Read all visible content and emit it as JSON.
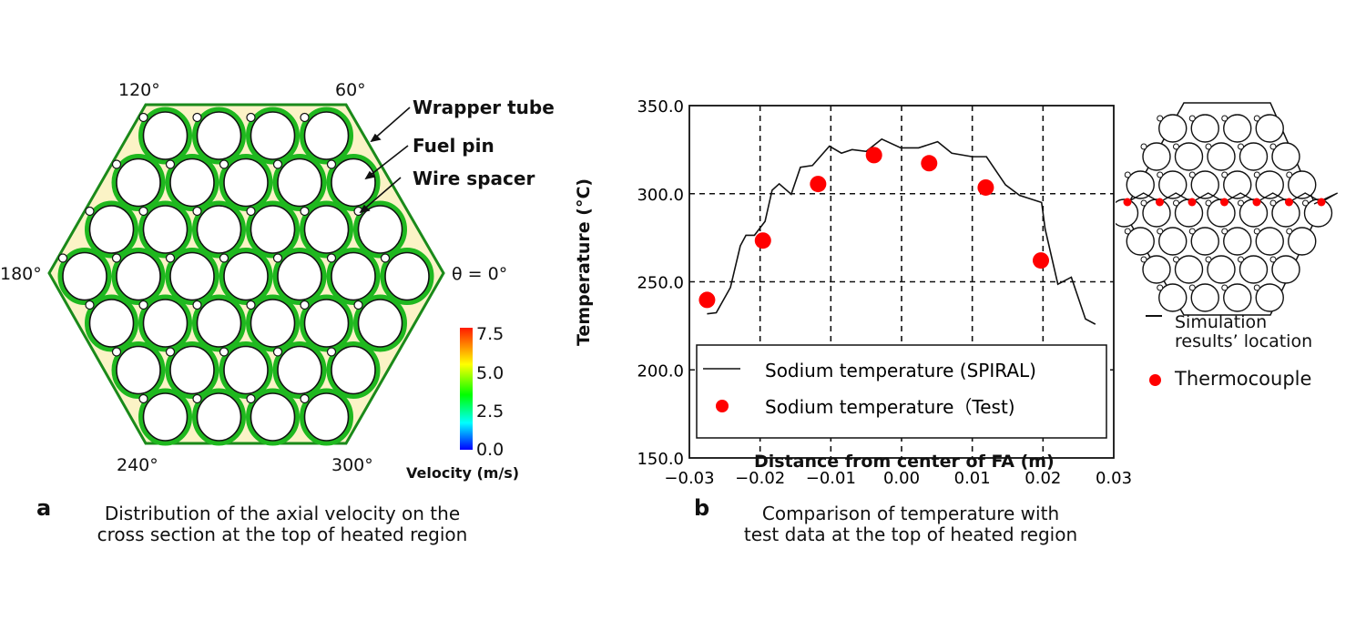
{
  "panel_a": {
    "letter": "a",
    "caption_line1": "Distribution of the axial velocity on the",
    "caption_line2": "cross section at the top of heated region",
    "angles": {
      "a120": "120°",
      "a60": "60°",
      "a180": "180°",
      "a0": "θ = 0°",
      "a240": "240°",
      "a300": "300°"
    },
    "annotations": {
      "wrapper": "Wrapper tube",
      "fuel": "Fuel pin",
      "wire": "Wire spacer"
    },
    "colorbar": {
      "ticks": [
        "7.5",
        "5.0",
        "2.5",
        "0.0"
      ],
      "label": "Velocity (m/s)",
      "colors": [
        "#ff1a00",
        "#ffff00",
        "#00ff00",
        "#00ffff",
        "#0000ff"
      ]
    },
    "pin_rows": [
      4,
      5,
      6,
      7,
      6,
      5,
      4
    ]
  },
  "panel_b": {
    "letter": "b",
    "caption_line1": "Comparison of temperature with",
    "caption_line2": "test data at the top of heated region",
    "inset_legend": {
      "line_line1": "Simulation",
      "line_line2": "results’ location",
      "dot": "Thermocouple"
    }
  },
  "chart_data": {
    "type": "line+scatter",
    "xlabel": "Distance from center of FA (m)",
    "ylabel": "Temperature (°C)",
    "xlim": [
      -0.03,
      0.03
    ],
    "ylim": [
      150,
      350
    ],
    "xticks": [
      "−0.03",
      "−0.02",
      "−0.01",
      "0.00",
      "0.01",
      "0.02",
      "0.03"
    ],
    "yticks": [
      "350.0",
      "300.0",
      "250.0",
      "200.0",
      "150.0"
    ],
    "grid": "dashed",
    "legend_position": "bottom",
    "series": [
      {
        "name": "Sodium temperature (SPIRAL)",
        "type": "line",
        "color": "#111111",
        "x": [
          -0.0275,
          -0.0262,
          -0.0242,
          -0.0228,
          -0.022,
          -0.0208,
          -0.0193,
          -0.0183,
          -0.0173,
          -0.0156,
          -0.0143,
          -0.0126,
          -0.0102,
          -0.0085,
          -0.007,
          -0.005,
          -0.0028,
          -0.0001,
          0.0024,
          0.0051,
          0.0071,
          0.01,
          0.012,
          0.0147,
          0.0167,
          0.0198,
          0.0203,
          0.0221,
          0.024,
          0.026,
          0.0274
        ],
        "y": [
          231.8,
          232.4,
          246.7,
          270.4,
          276.4,
          276.4,
          284.3,
          302,
          305.6,
          299.7,
          315,
          316,
          327,
          323,
          325,
          324,
          331,
          326,
          326,
          329.5,
          323,
          321,
          321,
          305,
          299,
          295,
          280,
          248.6,
          252.6,
          228.9,
          225.9
        ]
      },
      {
        "name": "Sodium temperature（Test)",
        "type": "scatter",
        "color": "#ff0000",
        "x": [
          -0.0275,
          -0.0196,
          -0.0118,
          -0.0039,
          0.0039,
          0.0119,
          0.0197
        ],
        "y": [
          239.7,
          273.4,
          305.5,
          321.9,
          317.3,
          303.5,
          262.1
        ]
      }
    ]
  }
}
